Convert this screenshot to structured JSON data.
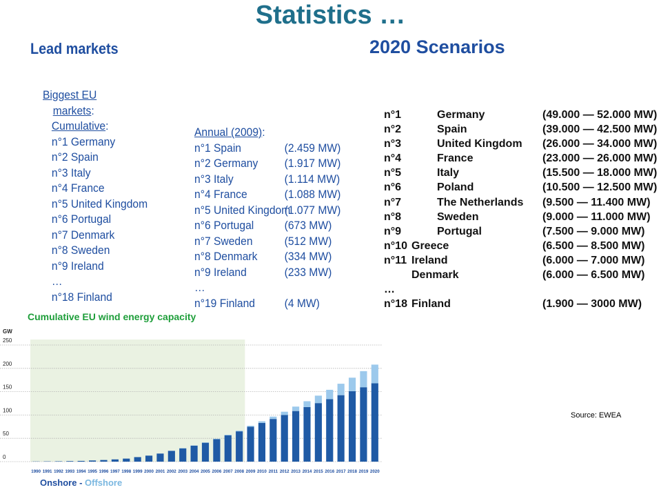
{
  "header": {
    "title": "Statistics …",
    "lead_markets": "Lead markets",
    "scenarios_title": "2020 Scenarios"
  },
  "biggest": {
    "heading_1": "Biggest EU",
    "heading_2": "markets",
    "heading_colon": ":",
    "cumulative_label": "Cumulative",
    "cumulative_colon": ":",
    "items": [
      "n°1 Germany",
      "n°2 Spain",
      "n°3 Italy",
      "n°4 France",
      "n°5 United Kingdom",
      "n°6 Portugal",
      "n°7 Denmark",
      "n°8 Sweden",
      "n°9 Ireland",
      "…",
      "n°18 Finland"
    ]
  },
  "annual": {
    "label": "Annual (2009)",
    "colon": ":",
    "rows": [
      {
        "name": "n°1 Spain",
        "value": "(2.459 MW)"
      },
      {
        "name": "n°2 Germany",
        "value": "(1.917 MW)"
      },
      {
        "name": "n°3 Italy",
        "value": "(1.114 MW)"
      },
      {
        "name": "n°4 France",
        "value": "(1.088 MW)"
      },
      {
        "name": "n°5 United Kingdom",
        "value": "(1.077 MW)"
      },
      {
        "name": "n°6 Portugal",
        "value": "(673 MW)"
      },
      {
        "name": "n°7 Sweden",
        "value": "(512 MW)"
      },
      {
        "name": "n°8 Denmark",
        "value": "(334 MW)"
      },
      {
        "name": "n°9 Ireland",
        "value": "(233 MW)"
      },
      {
        "name": "…",
        "value": ""
      },
      {
        "name": "n°19 Finland",
        "value": "(4 MW)"
      }
    ]
  },
  "scenarios": [
    {
      "rank": "n°1",
      "country": "Germany",
      "value": "(49.000 — 52.000 MW)"
    },
    {
      "rank": "n°2",
      "country": "Spain",
      "value": "(39.000 — 42.500 MW)"
    },
    {
      "rank": "n°3",
      "country": "United Kingdom",
      "value": "(26.000 — 34.000 MW)"
    },
    {
      "rank": "n°4",
      "country": "France",
      "value": "(23.000 — 26.000 MW)"
    },
    {
      "rank": "n°5",
      "country": "Italy",
      "value": "(15.500 — 18.000 MW)"
    },
    {
      "rank": "n°6",
      "country": "Poland",
      "value": "(10.500 — 12.500 MW)"
    },
    {
      "rank": "n°7",
      "country": "The Netherlands",
      "value": "(9.500 — 11.400 MW)"
    },
    {
      "rank": "n°8",
      "country": "Sweden",
      "value": "(9.000 — 11.000 MW)"
    },
    {
      "rank": "n°9",
      "country": "Portugal",
      "value": "(7.500 — 9.000 MW)"
    },
    {
      "rank": "n°10",
      "country": "Greece",
      "value": "(6.500 — 8.500 MW)"
    },
    {
      "rank": "n°11",
      "country": "Ireland",
      "value": "(6.000 — 7.000 MW)"
    },
    {
      "rank": "",
      "country": "Denmark",
      "value": "(6.000 — 6.500 MW)"
    },
    {
      "rank": "…",
      "country": "",
      "value": ""
    },
    {
      "rank": "n°18",
      "country": "Finland",
      "value": "(1.900 — 3000 MW)"
    }
  ],
  "source": "Source: EWEA",
  "chart_data": {
    "type": "bar",
    "title": "Cumulative EU wind energy capacity",
    "ylabel": "GW",
    "ylim": [
      0,
      250
    ],
    "yticks": [
      0,
      50,
      100,
      150,
      200,
      250
    ],
    "grid": true,
    "highlight_range": [
      "1990",
      "2008"
    ],
    "categories": [
      "1990",
      "1991",
      "1992",
      "1993",
      "1994",
      "1995",
      "1996",
      "1997",
      "1998",
      "1999",
      "2000",
      "2001",
      "2002",
      "2003",
      "2004",
      "2005",
      "2006",
      "2007",
      "2008",
      "2009",
      "2010",
      "2011",
      "2012",
      "2013",
      "2014",
      "2015",
      "2016",
      "2017",
      "2018",
      "2019",
      "2020"
    ],
    "series": [
      {
        "name": "Onshore",
        "values": [
          0.4,
          0.6,
          0.8,
          1.2,
          1.6,
          2.5,
          3.5,
          4.8,
          6.5,
          9.7,
          12.9,
          17.3,
          23.1,
          28.5,
          34.3,
          40.5,
          48.1,
          56.5,
          64.9,
          74.8,
          83.0,
          91.5,
          100.0,
          108.5,
          117.0,
          125.5,
          134.0,
          142.5,
          151.0,
          159.5,
          168.0
        ]
      },
      {
        "name": "Offshore",
        "values": [
          0,
          0,
          0,
          0,
          0,
          0,
          0,
          0,
          0,
          0,
          0.1,
          0.1,
          0.3,
          0.5,
          0.6,
          0.7,
          0.9,
          1.1,
          1.5,
          2.1,
          3.5,
          5.0,
          7.0,
          9.5,
          12.5,
          16.0,
          20.0,
          24.5,
          29.0,
          34.5,
          40.0
        ]
      }
    ],
    "legend": {
      "onshore_label": "Onshore",
      "separator": " - ",
      "offshore_label": "Offshore"
    },
    "colors": {
      "onshore": "#1f5aa5",
      "offshore": "#9cc9ec",
      "highlight": "#eaf2e2",
      "grid": "#b3b3b3",
      "title": "#1e9e3a"
    }
  }
}
